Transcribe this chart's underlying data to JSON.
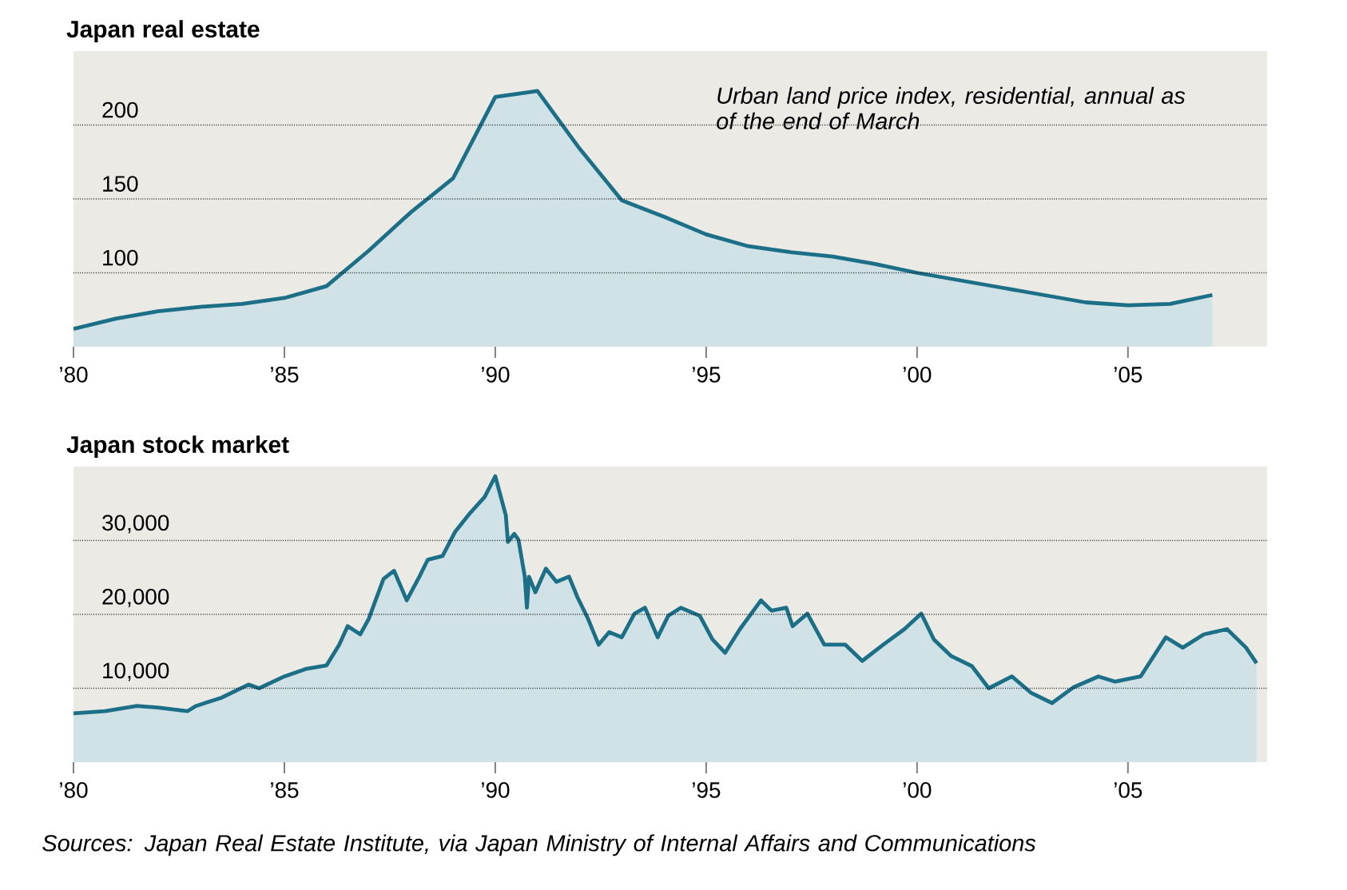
{
  "chart_data": [
    {
      "type": "area",
      "title": "Japan real estate",
      "color": "#1b6f86",
      "x": [
        1980,
        1981,
        1982,
        1983,
        1984,
        1985,
        1986,
        1987,
        1988,
        1989,
        1990,
        1991,
        1992,
        1993,
        1994,
        1995,
        1996,
        1997,
        1998,
        1999,
        2000,
        2001,
        2002,
        2003,
        2004,
        2005,
        2006,
        2007
      ],
      "values": [
        62,
        69,
        74,
        77,
        79,
        83,
        91,
        115,
        141,
        164,
        219,
        223,
        184,
        149,
        138,
        126,
        118,
        114,
        111,
        106,
        100,
        95,
        90,
        85,
        80,
        78,
        79,
        85
      ],
      "xlim": [
        1980,
        2008.3
      ],
      "ylim": [
        50,
        250
      ],
      "xticks": [
        {
          "value": 1980,
          "label": "’80"
        },
        {
          "value": 1985,
          "label": "’85"
        },
        {
          "value": 1990,
          "label": "’90"
        },
        {
          "value": 1995,
          "label": "’95"
        },
        {
          "value": 2000,
          "label": "’00"
        },
        {
          "value": 2005,
          "label": "’05"
        }
      ],
      "yticks": [
        100,
        150,
        200
      ],
      "grid": "y",
      "annotations": [
        "Urban land price index, residential, annual as of the end of March"
      ]
    },
    {
      "type": "area",
      "title": "Japan stock market",
      "color": "#1b6f86",
      "x": [
        1980.0,
        1980.75,
        1981.5,
        1982.0,
        1982.7,
        1982.9,
        1983.5,
        1984.15,
        1984.4,
        1985.0,
        1985.5,
        1986.0,
        1986.3,
        1986.5,
        1986.8,
        1987.0,
        1987.35,
        1987.6,
        1987.9,
        1988.2,
        1988.4,
        1988.75,
        1989.05,
        1989.4,
        1989.75,
        1990.0,
        1990.25,
        1990.3,
        1990.45,
        1990.55,
        1990.7,
        1990.75,
        1990.8,
        1990.95,
        1991.2,
        1991.45,
        1991.75,
        1991.95,
        1992.2,
        1992.45,
        1992.7,
        1993.0,
        1993.3,
        1993.55,
        1993.85,
        1994.1,
        1994.4,
        1994.85,
        1995.15,
        1995.45,
        1995.8,
        1996.3,
        1996.55,
        1996.9,
        1997.05,
        1997.4,
        1997.8,
        1998.3,
        1998.7,
        1999.2,
        1999.7,
        2000.1,
        2000.4,
        2000.8,
        2001.3,
        2001.7,
        2002.25,
        2002.7,
        2003.2,
        2003.7,
        2004.3,
        2004.7,
        2005.3,
        2005.9,
        2006.3,
        2006.8,
        2007.35,
        2007.8,
        2008.05
      ],
      "values": [
        6600,
        6900,
        7600,
        7400,
        6900,
        7600,
        8700,
        10500,
        10000,
        11600,
        12600,
        13100,
        15900,
        18400,
        17300,
        19400,
        24800,
        25900,
        21900,
        25100,
        27400,
        27900,
        31200,
        33700,
        35900,
        38700,
        33400,
        29800,
        30900,
        30100,
        25100,
        20900,
        25100,
        23000,
        26200,
        24400,
        25100,
        22300,
        19400,
        15900,
        17600,
        16900,
        20100,
        20900,
        16900,
        19800,
        20900,
        19800,
        16600,
        14800,
        18000,
        21900,
        20500,
        20900,
        18400,
        20100,
        15900,
        15900,
        13700,
        15900,
        18000,
        20100,
        16600,
        14400,
        13000,
        10000,
        11600,
        9400,
        8000,
        10100,
        11600,
        10900,
        11600,
        16900,
        15500,
        17300,
        18000,
        15500,
        13400
      ],
      "xlim": [
        1980,
        2008.3
      ],
      "ylim": [
        0,
        40000
      ],
      "xticks": [
        {
          "value": 1980,
          "label": "’80"
        },
        {
          "value": 1985,
          "label": "’85"
        },
        {
          "value": 1990,
          "label": "’90"
        },
        {
          "value": 1995,
          "label": "’95"
        },
        {
          "value": 2000,
          "label": "’00"
        },
        {
          "value": 2005,
          "label": "’05"
        }
      ],
      "yticks": [
        {
          "value": 10000,
          "label": "10,000"
        },
        {
          "value": 20000,
          "label": "20,000"
        },
        {
          "value": 30000,
          "label": "30,000"
        }
      ],
      "grid": "y",
      "annotations": [
        "Sources: Japan Real Estate Institute, via Japan Ministry of Internal Affairs and Communications"
      ]
    }
  ]
}
